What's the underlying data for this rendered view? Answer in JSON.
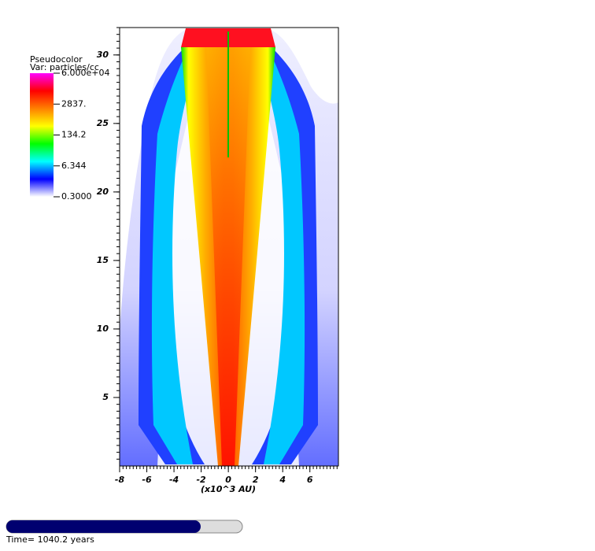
{
  "chart_data": {
    "type": "pseudocolor",
    "legend_title": "Pseudocolor",
    "legend_var": "Var: particles/cc",
    "x_label": "(x10^3 AU)",
    "xlim": [
      -8,
      8.1
    ],
    "xticks": [
      -8,
      -6,
      -4,
      -2,
      0,
      2,
      4,
      6
    ],
    "ylim": [
      0,
      32
    ],
    "yticks": [
      5,
      10,
      15,
      20,
      25,
      30
    ],
    "colorbar": {
      "log": true,
      "colors": [
        "#ffffff",
        "#0000ff",
        "#00ffff",
        "#00ff00",
        "#ffff00",
        "#ff8000",
        "#ff0000",
        "#ff00ff"
      ],
      "ticks": [
        {
          "value": 60000,
          "label": "6.000e+04"
        },
        {
          "value": 2837,
          "label": "2837."
        },
        134.2,
        6.344,
        {
          "value": 0.3,
          "label": "0.3000"
        }
      ]
    },
    "time_label": "Time= 1040.2 years"
  }
}
